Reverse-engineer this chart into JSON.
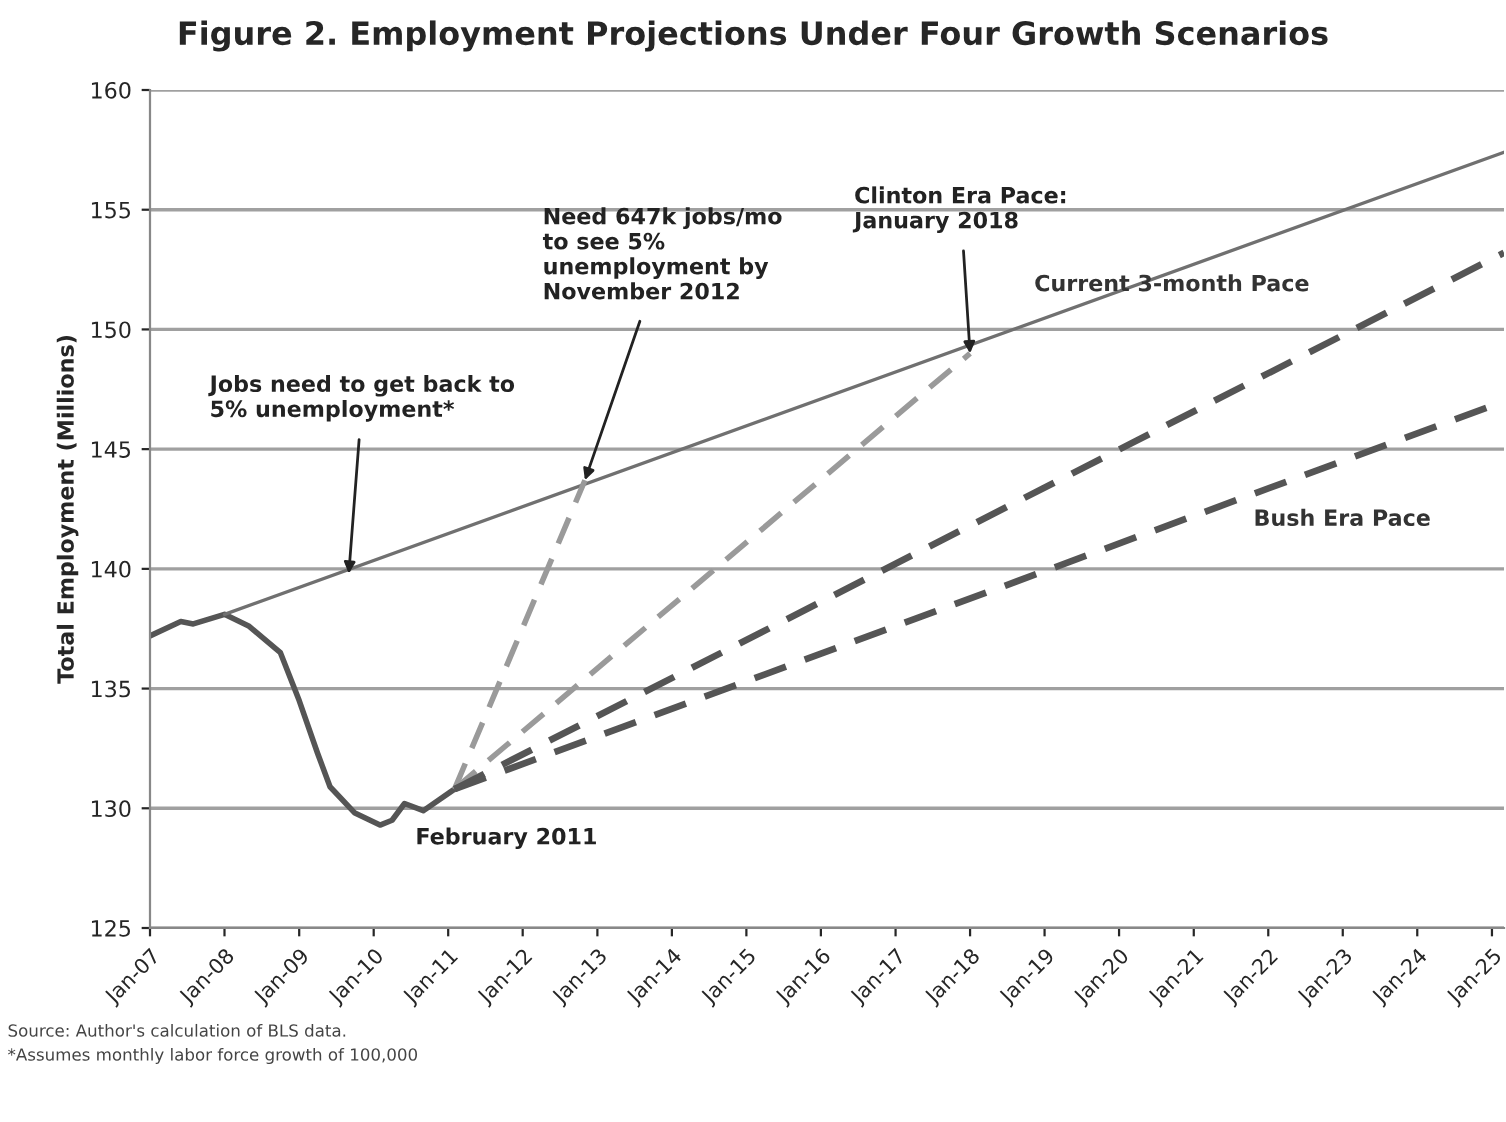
{
  "chart_data": {
    "type": "line",
    "title": "Figure 2. Employment Projections Under Four Growth Scenarios",
    "ylabel": "Total Employment (Millions)",
    "series": [
      {
        "color": "#555555",
        "line_style": "solid",
        "x": [
          "2007-01",
          "2007-06",
          "2007-08",
          "2008-01",
          "2008-05",
          "2008-10",
          "2009-01",
          "2009-04",
          "2009-06",
          "2009-10",
          "2010-02",
          "2010-04",
          "2010-06",
          "2010-09",
          "2011-02"
        ],
        "values": [
          137.2,
          137.8,
          137.7,
          138.1,
          137.6,
          136.5,
          134.5,
          132.3,
          130.9,
          129.8,
          129.3,
          129.5,
          130.2,
          129.9,
          130.8
        ]
      },
      {
        "color": "#707070",
        "line_style": "solid",
        "x": [
          "2008-01",
          "2025-03"
        ],
        "values": [
          138.1,
          157.4
        ]
      },
      {
        "color": "#9a9a9a",
        "line_style": "dashed",
        "x": [
          "2011-02",
          "2012-11"
        ],
        "values": [
          130.8,
          143.7
        ]
      },
      {
        "color": "#9a9a9a",
        "line_style": "dashed",
        "x": [
          "2011-02",
          "2018-01"
        ],
        "values": [
          130.8,
          149.0
        ]
      },
      {
        "name": "Current 3-month Pace",
        "color": "#555555",
        "line_style": "dashed",
        "x": [
          "2011-02",
          "2025-03"
        ],
        "values": [
          130.8,
          153.2
        ]
      },
      {
        "name": "Bush Era Pace",
        "color": "#555555",
        "line_style": "dashed",
        "x": [
          "2011-02",
          "2025-03"
        ],
        "values": [
          130.8,
          147.0
        ]
      }
    ],
    "xlim": [
      "2007-01",
      "2025-03"
    ],
    "xticks": [
      {
        "value": "2007-01",
        "label": "Jan-07"
      },
      {
        "value": "2008-01",
        "label": "Jan-08"
      },
      {
        "value": "2009-01",
        "label": "Jan-09"
      },
      {
        "value": "2010-01",
        "label": "Jan-10"
      },
      {
        "value": "2011-01",
        "label": "Jan-11"
      },
      {
        "value": "2012-01",
        "label": "Jan-12"
      },
      {
        "value": "2013-01",
        "label": "Jan-13"
      },
      {
        "value": "2014-01",
        "label": "Jan-14"
      },
      {
        "value": "2015-01",
        "label": "Jan-15"
      },
      {
        "value": "2016-01",
        "label": "Jan-16"
      },
      {
        "value": "2017-01",
        "label": "Jan-17"
      },
      {
        "value": "2018-01",
        "label": "Jan-18"
      },
      {
        "value": "2019-01",
        "label": "Jan-19"
      },
      {
        "value": "2020-01",
        "label": "Jan-20"
      },
      {
        "value": "2021-01",
        "label": "Jan-21"
      },
      {
        "value": "2022-01",
        "label": "Jan-22"
      },
      {
        "value": "2023-01",
        "label": "Jan-23"
      },
      {
        "value": "2024-01",
        "label": "Jan-24"
      },
      {
        "value": "2025-01",
        "label": "Jan-25"
      }
    ],
    "ylim": [
      125,
      160
    ],
    "yticks": [
      125,
      130,
      135,
      140,
      145,
      150,
      155,
      160
    ],
    "grid": "y",
    "legend": false,
    "annotations": [
      {
        "text": "Jobs need to get back to\n5% unemployment*",
        "x": "2009-09",
        "y": 139.8
      },
      {
        "text": "Need 647k jobs/mo\nto see 5%\nunemployment by\nNovember 2012",
        "x": "2012-11",
        "y": 143.7
      },
      {
        "text": "Clinton Era Pace:\nJanuary 2018",
        "x": "2018-01",
        "y": 149.0
      },
      {
        "text": "February 2011",
        "x": "2011-02",
        "y": 130.8
      },
      "Source: Author's calculation of BLS data.",
      "*Assumes monthly labor force growth of 100,000"
    ]
  }
}
